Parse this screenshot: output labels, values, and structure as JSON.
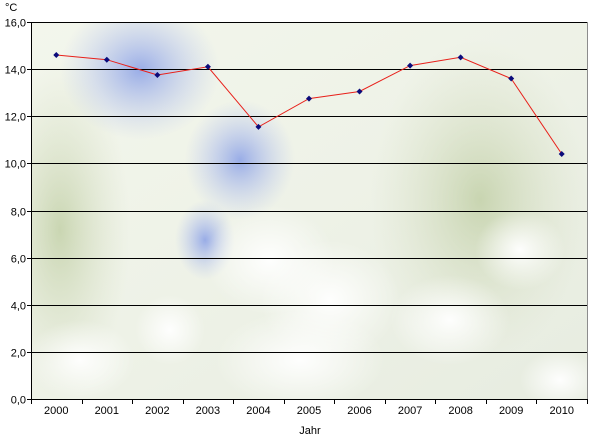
{
  "chart_data": {
    "type": "line",
    "title": "",
    "xlabel": "Jahr",
    "ylabel": "°C",
    "categories": [
      "2000",
      "2001",
      "2002",
      "2003",
      "2004",
      "2005",
      "2006",
      "2007",
      "2008",
      "2009",
      "2010"
    ],
    "series": [
      {
        "values": [
          14.6,
          14.4,
          13.75,
          14.1,
          11.55,
          12.75,
          13.05,
          14.15,
          14.5,
          13.6,
          10.4
        ]
      }
    ],
    "ylim": [
      0,
      16
    ],
    "yticks": [
      "0,0",
      "2,0",
      "4,0",
      "6,0",
      "8,0",
      "10,0",
      "12,0",
      "14,0",
      "16,0"
    ],
    "grid": true,
    "line_color": "#e8201a",
    "marker_color": "#0b0b7a",
    "gridline_color": "#000000"
  }
}
